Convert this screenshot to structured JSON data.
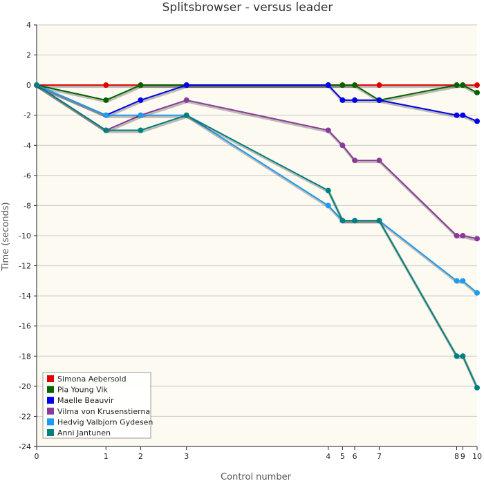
{
  "chart_data": {
    "type": "line",
    "title": "Splitsbrowser - versus leader",
    "xlabel": "Control number",
    "ylabel": "Time (seconds)",
    "xlim": [
      0,
      10
    ],
    "ylim": [
      -24,
      4
    ],
    "x_ticks": [
      0,
      1,
      2,
      3,
      4,
      5,
      6,
      7,
      8,
      9,
      10
    ],
    "x_positions": [
      0,
      3.4,
      5.1,
      7.35,
      14.3,
      15.0,
      15.6,
      16.8,
      20.6,
      20.9,
      21.6
    ],
    "y_ticks": [
      4,
      2,
      0,
      -2,
      -4,
      -6,
      -8,
      -10,
      -12,
      -14,
      -16,
      -18,
      -20,
      -22,
      -24
    ],
    "grid": true,
    "legend_position": "bottom-left",
    "plot_background": "#fdfaf1",
    "series": [
      {
        "name": "Simona Aebersold",
        "color": "#e00000",
        "values": [
          0,
          0,
          0,
          0,
          0,
          0,
          0,
          0,
          0,
          0,
          0
        ]
      },
      {
        "name": "Pia Young Vik",
        "color": "#006400",
        "values": [
          0,
          -1,
          0,
          0,
          0,
          0,
          0,
          -1,
          0,
          0,
          -0.5
        ]
      },
      {
        "name": "Maelle Beauvir",
        "color": "#0000ee",
        "values": [
          0,
          -2,
          -1,
          0,
          0,
          -1,
          -1,
          -1,
          -2,
          -2,
          -2.4
        ]
      },
      {
        "name": "Vilma von Krusenstierna",
        "color": "#8b3a9b",
        "values": [
          0,
          -3,
          -2,
          -1,
          -3,
          -4,
          -5,
          -5,
          -10,
          -10,
          -10.2
        ]
      },
      {
        "name": "Hedvig Valbjorn Gydesen",
        "color": "#1e9bf0",
        "values": [
          0,
          -2,
          -2,
          -2,
          -8,
          -9,
          -9,
          -9,
          -13,
          -13,
          -13.8
        ]
      },
      {
        "name": "Anni Jantunen",
        "color": "#008080",
        "values": [
          0,
          -3,
          -3,
          -2,
          -7,
          -9,
          -9,
          -9,
          -18,
          -18,
          -20.1
        ]
      }
    ]
  }
}
